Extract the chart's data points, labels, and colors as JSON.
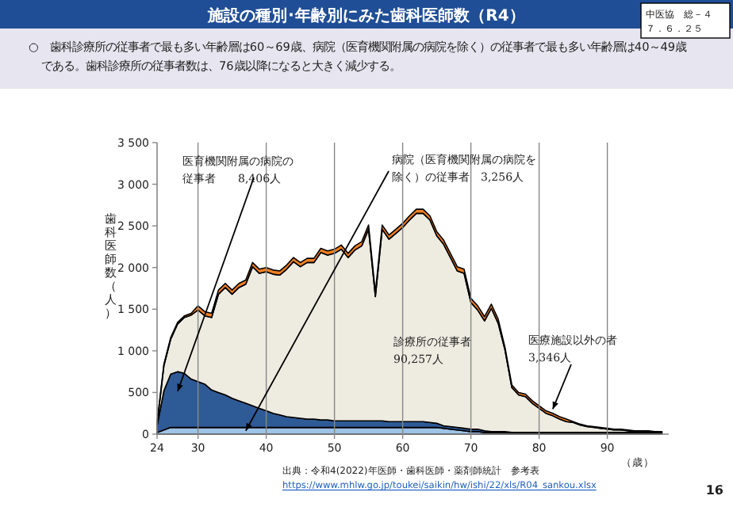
{
  "chart_data": {
    "type": "area",
    "stacked": true,
    "title": "施設の種別･年齢別にみた歯科医師数（R4）",
    "subtitle": "○　歯科診療所の従事者で最も多い年齢層は60～69歳、病院（医育機関附属の病院を除く）の従事者で最も多い年齢層は40～49歳である。歯科診療所の従事者数は、76歳以降になると大きく減少する。",
    "ylabel": "歯科医師数（人）",
    "xlabel": "（歳）",
    "x": [
      24,
      25,
      26,
      27,
      28,
      29,
      30,
      31,
      32,
      33,
      34,
      35,
      36,
      37,
      38,
      39,
      40,
      41,
      42,
      43,
      44,
      45,
      46,
      47,
      48,
      49,
      50,
      51,
      52,
      53,
      54,
      55,
      56,
      57,
      58,
      59,
      60,
      61,
      62,
      63,
      64,
      65,
      66,
      67,
      68,
      69,
      70,
      71,
      72,
      73,
      74,
      75,
      76,
      77,
      78,
      79,
      80,
      81,
      82,
      83,
      84,
      85,
      86,
      87,
      88,
      89,
      90,
      91,
      92,
      93,
      94,
      95,
      96,
      97,
      98
    ],
    "series": [
      {
        "color": "#9dc3e6",
        "values": [
          20,
          50,
          80,
          80,
          80,
          80,
          80,
          80,
          80,
          80,
          80,
          80,
          80,
          80,
          80,
          80,
          80,
          80,
          80,
          80,
          80,
          80,
          80,
          80,
          80,
          80,
          80,
          80,
          80,
          80,
          80,
          80,
          80,
          80,
          80,
          80,
          80,
          80,
          80,
          80,
          80,
          80,
          70,
          60,
          50,
          40,
          30,
          30,
          20,
          20,
          20,
          20,
          10,
          10,
          10,
          10,
          10,
          10,
          10,
          10,
          10,
          10,
          10,
          10,
          10,
          10,
          10,
          10,
          10,
          10,
          10,
          10,
          10,
          10,
          10
        ]
      },
      {
        "color": "#2e5a96",
        "values": [
          80,
          470,
          640,
          670,
          650,
          580,
          550,
          520,
          450,
          420,
          390,
          350,
          320,
          290,
          260,
          230,
          200,
          170,
          150,
          130,
          120,
          110,
          100,
          100,
          90,
          90,
          80,
          80,
          80,
          80,
          80,
          80,
          80,
          80,
          70,
          70,
          70,
          70,
          70,
          70,
          60,
          50,
          30,
          30,
          30,
          30,
          30,
          30,
          20,
          10,
          10,
          10,
          10,
          10,
          10,
          10,
          10,
          10,
          10,
          10,
          10,
          10,
          10,
          10,
          10,
          10,
          10,
          10,
          10,
          10,
          10,
          10,
          10,
          10,
          10
        ]
      },
      {
        "color": "#eeece1",
        "values": [
          20,
          300,
          420,
          570,
          670,
          770,
          860,
          820,
          870,
          1180,
          1290,
          1250,
          1360,
          1430,
          1670,
          1620,
          1670,
          1670,
          1680,
          1770,
          1870,
          1820,
          1880,
          1880,
          2010,
          1980,
          2010,
          2060,
          1960,
          2050,
          2100,
          2300,
          1490,
          2300,
          2190,
          2260,
          2330,
          2420,
          2500,
          2500,
          2430,
          2250,
          2180,
          2030,
          1880,
          1860,
          1520,
          1430,
          1320,
          1480,
          1300,
          980,
          540,
          450,
          430,
          350,
          290,
          230,
          200,
          160,
          130,
          120,
          90,
          70,
          60,
          50,
          40,
          30,
          30,
          20,
          10,
          10,
          10,
          0,
          0
        ]
      },
      {
        "color": "#f07f1f",
        "values": [
          20,
          20,
          20,
          20,
          20,
          20,
          50,
          50,
          50,
          50,
          50,
          50,
          50,
          50,
          50,
          50,
          50,
          50,
          50,
          50,
          50,
          50,
          50,
          50,
          50,
          50,
          50,
          50,
          50,
          50,
          50,
          50,
          50,
          50,
          50,
          50,
          50,
          50,
          50,
          50,
          50,
          50,
          50,
          50,
          50,
          50,
          50,
          50,
          50,
          50,
          50,
          30,
          30,
          30,
          30,
          30,
          30,
          30,
          30,
          30,
          30,
          10,
          10,
          10,
          10,
          10,
          10,
          10,
          10,
          10,
          10,
          10,
          10,
          10,
          10
        ]
      }
    ],
    "xlim": [
      24,
      99
    ],
    "ylim": [
      0,
      3500
    ],
    "xticks": [
      24,
      30,
      40,
      50,
      60,
      70,
      80,
      90
    ],
    "yticks": [
      0,
      500,
      {
        "value": 1000,
        "label": "1 000"
      },
      {
        "value": 1500,
        "label": "1 500"
      },
      {
        "value": 2000,
        "label": "2 000"
      },
      {
        "value": 2500,
        "label": "2 500"
      },
      {
        "value": 3000,
        "label": "3 000"
      },
      {
        "value": 3500,
        "label": "3 500"
      }
    ],
    "grid": "x",
    "annotations": [
      "医育機関附属の病院の従事者　　8,406人",
      {
        "text": "病院（医育機関附属の病院を除く）の従事者　3,256人",
        "x": 37,
        "y": 40
      },
      "診療所の従事者90,257人",
      {
        "text": "医療施設以外の者3,346人",
        "x": 82,
        "y": 300
      },
      "中医協　総－４７．６．２５",
      "出典：令和4(2022)年医師・歯科医師・薬剤師統計　参考表",
      "https://www.mhlw.go.jp/toukei/saikin/hw/ishi/22/xls/R04_sankou.xlsx",
      "16"
    ]
  }
}
